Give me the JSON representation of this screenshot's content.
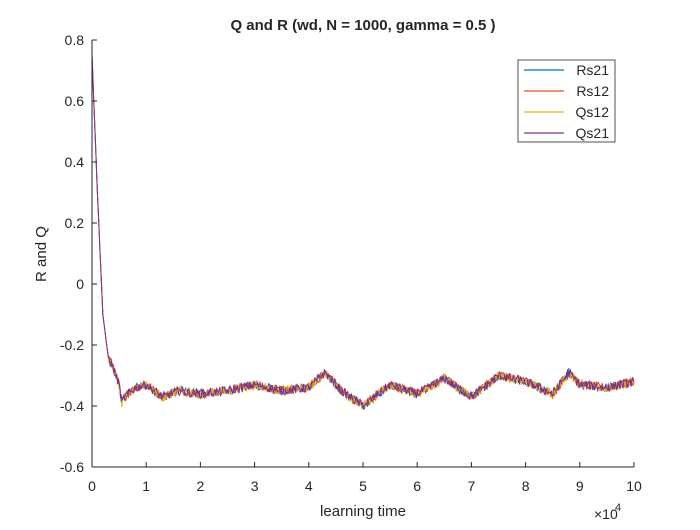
{
  "colors": {
    "background": "#ffffff",
    "axis": "#262626",
    "series": [
      "#0072BD",
      "#D95319",
      "#EDB120",
      "#7E2F8E"
    ]
  },
  "chart_data": {
    "type": "line",
    "title": "Q and R (wd, N = 1000, gamma = 0.5 )",
    "xlabel": "learning time",
    "ylabel": "R and Q",
    "x_exponent_label": "×10",
    "x_exponent_value": "4",
    "xlim": [
      0,
      10
    ],
    "ylim": [
      -0.6,
      0.8
    ],
    "x_ticks": [
      0,
      1,
      2,
      3,
      4,
      5,
      6,
      7,
      8,
      9,
      10
    ],
    "x_tick_labels": [
      "0",
      "1",
      "2",
      "3",
      "4",
      "5",
      "6",
      "7",
      "8",
      "9",
      "10"
    ],
    "y_ticks": [
      -0.6,
      -0.4,
      -0.2,
      0,
      0.2,
      0.4,
      0.6,
      0.8
    ],
    "y_tick_labels": [
      "-0.6",
      "-0.4",
      "-0.2",
      "0",
      "0.2",
      "0.4",
      "0.6",
      "0.8"
    ],
    "grid": false,
    "legend_position": "top-right",
    "series": [
      {
        "name": "Rs21",
        "x": [
          0,
          0.1,
          0.2,
          0.3,
          0.4,
          0.5,
          0.55,
          0.6,
          0.8,
          1,
          1.3,
          1.6,
          2,
          2.5,
          3,
          3.5,
          4,
          4.3,
          4.6,
          5,
          5.5,
          6,
          6.5,
          7,
          7.5,
          8,
          8.5,
          8.8,
          9,
          9.5,
          10
        ],
        "y": [
          0.75,
          0.3,
          -0.1,
          -0.24,
          -0.28,
          -0.33,
          -0.39,
          -0.37,
          -0.34,
          -0.33,
          -0.37,
          -0.35,
          -0.36,
          -0.35,
          -0.33,
          -0.35,
          -0.34,
          -0.29,
          -0.35,
          -0.4,
          -0.33,
          -0.36,
          -0.31,
          -0.37,
          -0.3,
          -0.32,
          -0.36,
          -0.29,
          -0.33,
          -0.34,
          -0.32
        ]
      },
      {
        "name": "Rs12",
        "x": [
          0,
          0.1,
          0.2,
          0.3,
          0.4,
          0.5,
          0.55,
          0.6,
          0.8,
          1,
          1.3,
          1.6,
          2,
          2.5,
          3,
          3.5,
          4,
          4.3,
          4.6,
          5,
          5.5,
          6,
          6.5,
          7,
          7.5,
          8,
          8.5,
          8.8,
          9,
          9.5,
          10
        ],
        "y": [
          0.75,
          0.3,
          -0.1,
          -0.24,
          -0.28,
          -0.33,
          -0.39,
          -0.37,
          -0.34,
          -0.33,
          -0.37,
          -0.35,
          -0.36,
          -0.35,
          -0.33,
          -0.35,
          -0.34,
          -0.29,
          -0.35,
          -0.4,
          -0.33,
          -0.36,
          -0.31,
          -0.37,
          -0.3,
          -0.32,
          -0.36,
          -0.29,
          -0.33,
          -0.34,
          -0.32
        ]
      },
      {
        "name": "Qs12",
        "x": [
          0,
          0.1,
          0.2,
          0.3,
          0.4,
          0.5,
          0.55,
          0.6,
          0.8,
          1,
          1.3,
          1.6,
          2,
          2.5,
          3,
          3.5,
          4,
          4.3,
          4.6,
          5,
          5.5,
          6,
          6.5,
          7,
          7.5,
          8,
          8.5,
          8.8,
          9,
          9.5,
          10
        ],
        "y": [
          0.75,
          0.3,
          -0.1,
          -0.24,
          -0.28,
          -0.33,
          -0.39,
          -0.37,
          -0.34,
          -0.33,
          -0.37,
          -0.35,
          -0.36,
          -0.35,
          -0.33,
          -0.35,
          -0.34,
          -0.29,
          -0.35,
          -0.4,
          -0.33,
          -0.36,
          -0.31,
          -0.37,
          -0.3,
          -0.32,
          -0.36,
          -0.29,
          -0.33,
          -0.34,
          -0.32
        ]
      },
      {
        "name": "Qs21",
        "x": [
          0,
          0.1,
          0.2,
          0.3,
          0.4,
          0.5,
          0.55,
          0.6,
          0.8,
          1,
          1.3,
          1.6,
          2,
          2.5,
          3,
          3.5,
          4,
          4.3,
          4.6,
          5,
          5.5,
          6,
          6.5,
          7,
          7.5,
          8,
          8.5,
          8.8,
          9,
          9.5,
          10
        ],
        "y": [
          0.75,
          0.3,
          -0.1,
          -0.24,
          -0.28,
          -0.33,
          -0.39,
          -0.37,
          -0.34,
          -0.33,
          -0.37,
          -0.35,
          -0.36,
          -0.35,
          -0.33,
          -0.35,
          -0.34,
          -0.29,
          -0.35,
          -0.4,
          -0.33,
          -0.36,
          -0.31,
          -0.37,
          -0.3,
          -0.32,
          -0.36,
          -0.29,
          -0.33,
          -0.34,
          -0.32
        ]
      }
    ]
  }
}
